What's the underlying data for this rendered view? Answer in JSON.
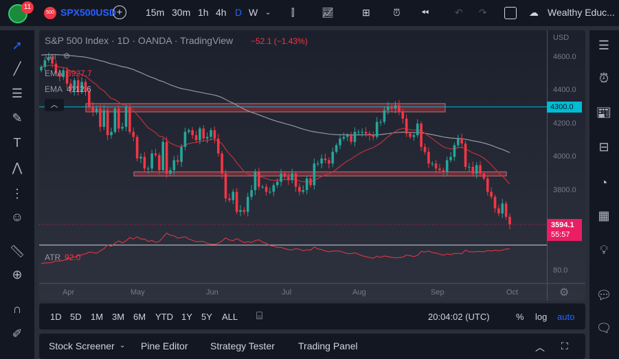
{
  "topbar": {
    "notifications": "11",
    "symbol_badge": "500",
    "symbol": "SPX500USD",
    "intervals": [
      "15m",
      "30m",
      "1h",
      "4h",
      "D",
      "W"
    ],
    "active_interval": "D",
    "account": "Wealthy Educ..."
  },
  "legend": {
    "title": "S&P 500 Index · 1D · OANDA · TradingView",
    "change": "−52.1 (−1.43%)",
    "vol": "Vol",
    "ema1_label": "EMA",
    "ema1_value": "3927.7",
    "ema2_label": "EMA",
    "ema2_value": "4112.6",
    "atr_label": "ATR",
    "atr_value": "92.0"
  },
  "price_axis": {
    "currency": "USD",
    "ticks": [
      "4600.0",
      "4400.0",
      "4200.0",
      "4000.0",
      "3800.0"
    ],
    "line_label": "4300.0",
    "last_price": "3594.1",
    "countdown": "55:57",
    "atr_tick": "80.0"
  },
  "time_axis": [
    "Apr",
    "May",
    "Jun",
    "Jul",
    "Aug",
    "Sep",
    "Oct"
  ],
  "bottom_bar": {
    "ranges": [
      "1D",
      "5D",
      "1M",
      "3M",
      "6M",
      "YTD",
      "1Y",
      "5Y",
      "ALL"
    ],
    "clock": "20:04:02 (UTC)",
    "pct": "%",
    "log": "log",
    "auto": "auto"
  },
  "tabs": [
    "Stock Screener",
    "Pine Editor",
    "Strategy Tester",
    "Trading Panel"
  ],
  "colors": {
    "up": "#26a69a",
    "down": "#f23645",
    "accent": "#2962ff",
    "cyan": "#00bcd4",
    "last": "#e91e63"
  },
  "chart_data": {
    "type": "candlestick",
    "symbol": "SPX500USD",
    "period": "Apr–Sep",
    "horizontal_line": 4300,
    "zones": [
      [
        4270,
        4320
      ],
      [
        3885,
        3910
      ]
    ],
    "closes": [
      4540,
      4580,
      4600,
      4560,
      4500,
      4480,
      4520,
      4440,
      4400,
      4460,
      4390,
      4450,
      4390,
      4300,
      4270,
      4290,
      4180,
      4280,
      4130,
      4150,
      4290,
      4170,
      4180,
      4300,
      4150,
      4120,
      3990,
      4000,
      3930,
      3930,
      4020,
      4010,
      3920,
      4090,
      3900,
      3920,
      3980,
      3970,
      4060,
      4150,
      4160,
      4130,
      4100,
      4170,
      4110,
      4120,
      4160,
      4110,
      4020,
      3900,
      3750,
      3740,
      3790,
      3670,
      3680,
      3670,
      3760,
      3800,
      3910,
      3820,
      3820,
      3790,
      3790,
      3830,
      3850,
      3900,
      3880,
      3860,
      3900,
      3820,
      3790,
      3800,
      3870,
      3830,
      3960,
      3960,
      3990,
      3980,
      3960,
      4030,
      4070,
      4110,
      4120,
      4130,
      4090,
      4150,
      4150,
      4150,
      4140,
      4130,
      4120,
      4210,
      4210,
      4280,
      4300,
      4290,
      4310,
      4270,
      4230,
      4140,
      4120,
      4130,
      4200,
      4060,
      4030,
      3960,
      3960,
      3930,
      3920,
      3910,
      3980,
      4000,
      4070,
      4110,
      4080,
      3940,
      3940,
      3900,
      3950,
      3900,
      3870,
      3790,
      3760,
      3690,
      3660,
      3720,
      3640,
      3594
    ]
  }
}
